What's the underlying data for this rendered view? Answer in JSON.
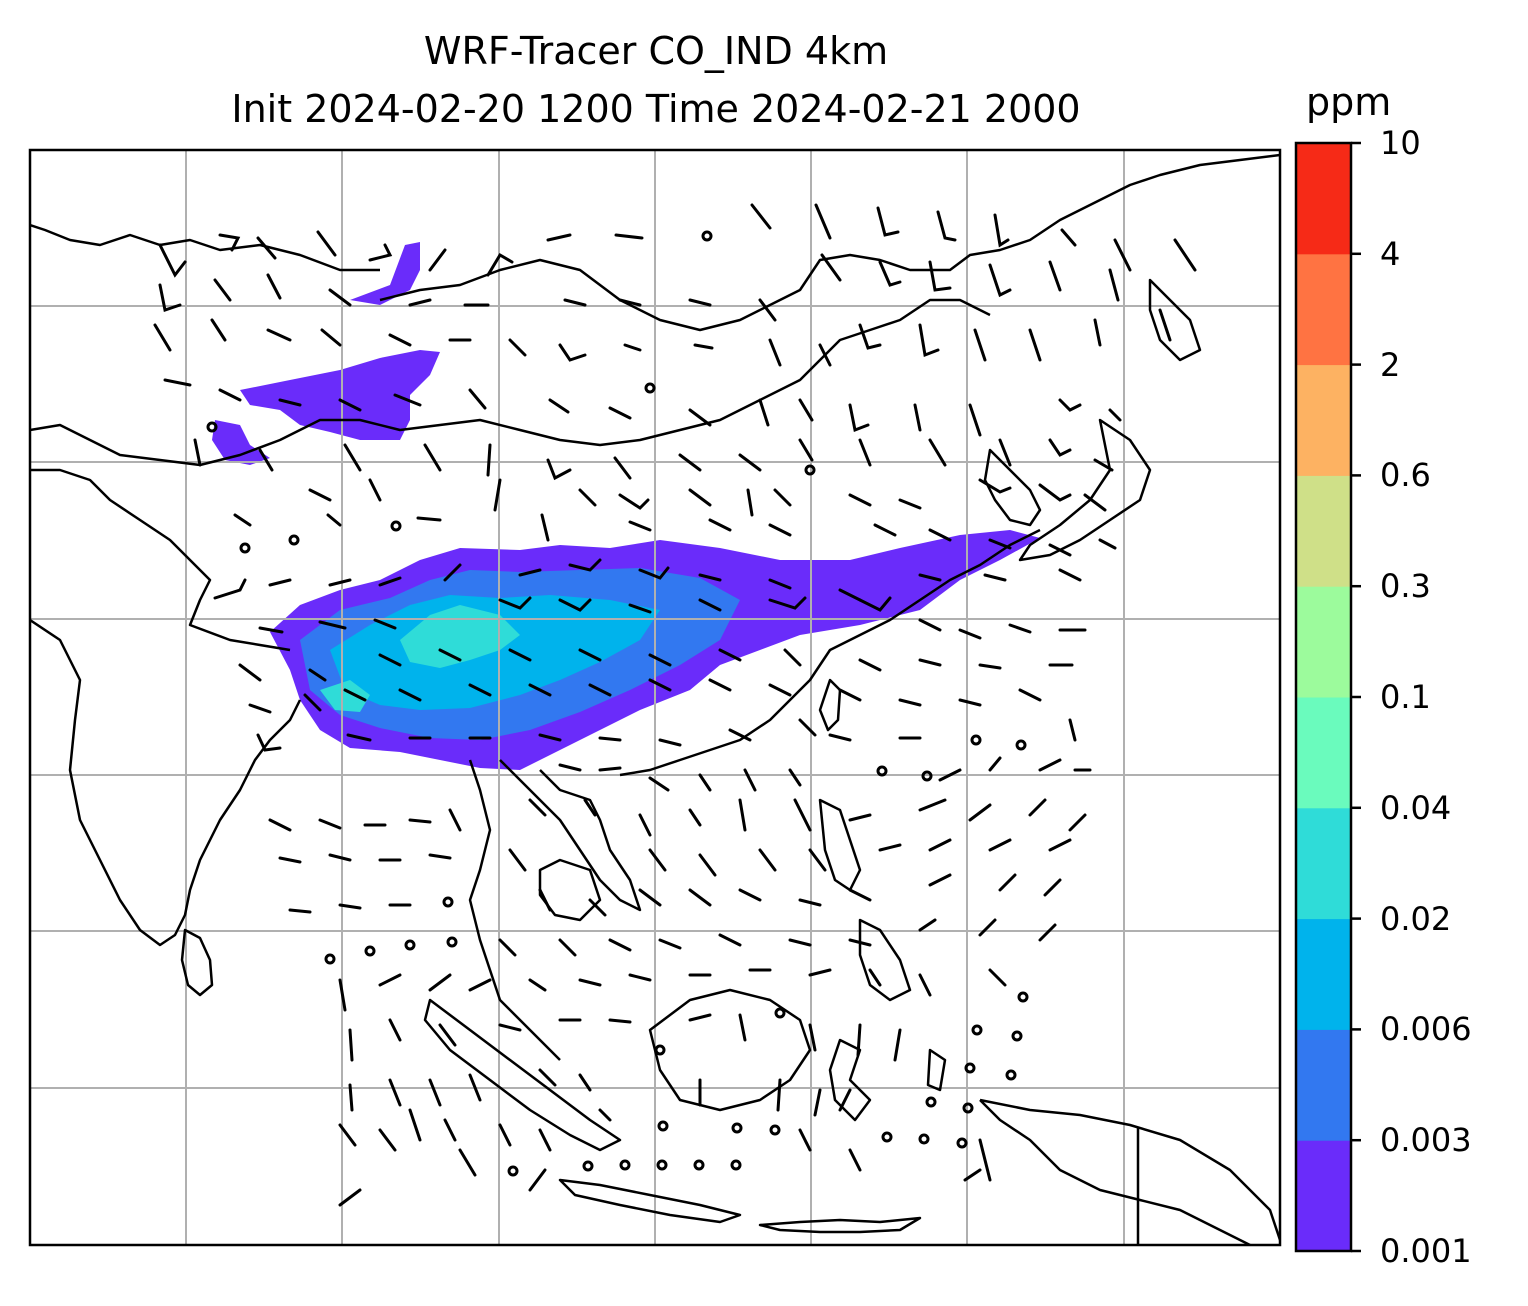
{
  "title": {
    "line1": "WRF-Tracer CO_IND 4km",
    "line2": "Init 2024-02-20 1200 Time 2024-02-21 2000"
  },
  "colorbar": {
    "unit": "ppm",
    "ticks": [
      "0.001",
      "0.003",
      "0.006",
      "0.02",
      "0.04",
      "0.1",
      "0.3",
      "0.6",
      "2",
      "4",
      "10"
    ],
    "colors": [
      "#6a2cfa",
      "#3278f0",
      "#00b3ec",
      "#2fdcd8",
      "#6afbbd",
      "#9cfb9c",
      "#cfe088",
      "#fdb262",
      "#ff7342",
      "#f62a17"
    ]
  },
  "map": {
    "gridlines": true,
    "overlay": "wind-barbs",
    "plume_color_levels": [
      "#6a2cfa",
      "#3278f0",
      "#00b3ec",
      "#2fdcd8"
    ]
  }
}
